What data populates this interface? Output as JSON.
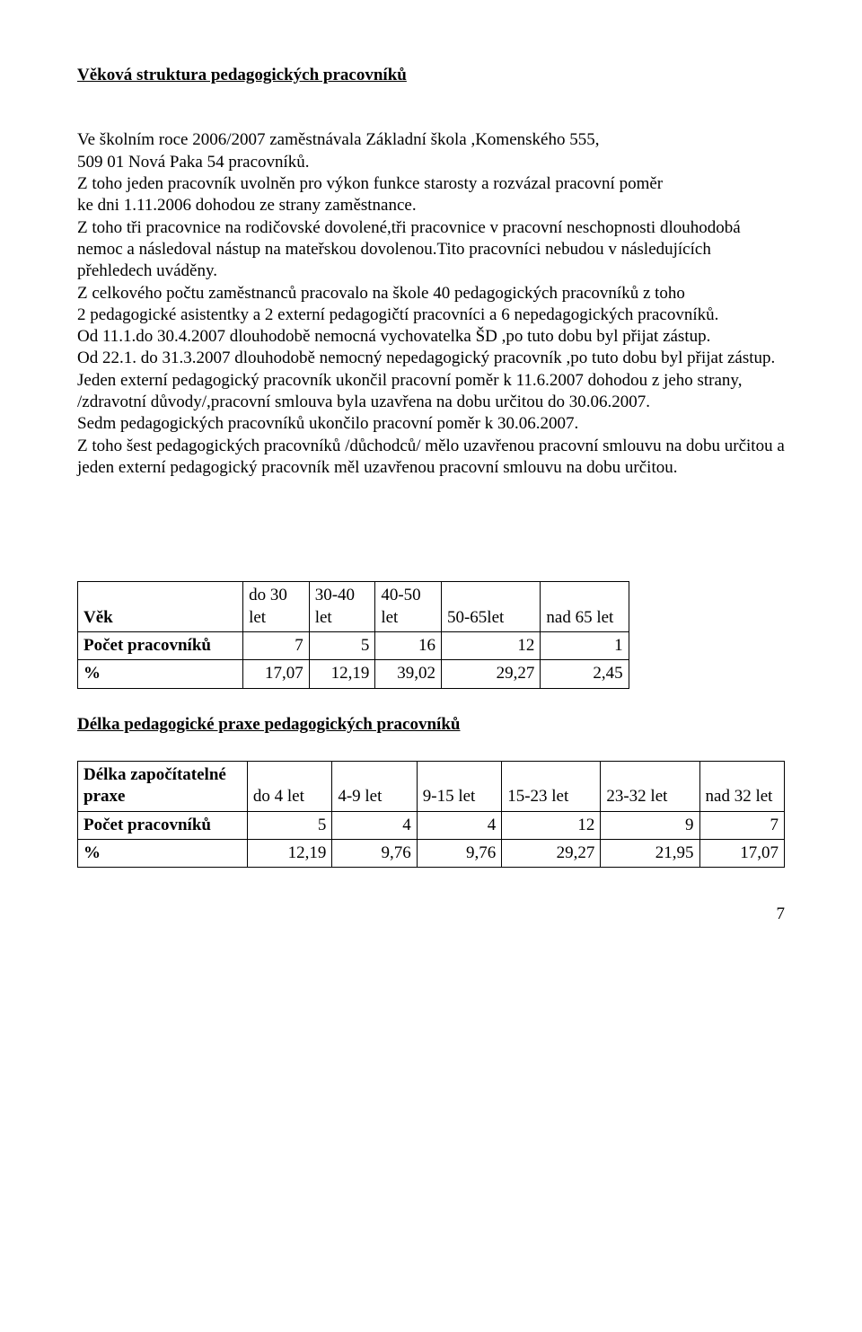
{
  "title": "Věková struktura pedagogických pracovníků",
  "body": {
    "p1": "Ve školním roce 2006/2007 zaměstnávala Základní škola ,Komenského 555,",
    "p2": "509 01 Nová Paka 54 pracovníků.",
    "p3": "Z toho jeden pracovník uvolněn pro výkon funkce starosty a rozvázal pracovní poměr",
    "p4": "ke dni 1.11.2006 dohodou ze strany zaměstnance.",
    "p5": "Z toho tři pracovnice na rodičovské dovolené,tři pracovnice v pracovní neschopnosti dlouhodobá nemoc a následoval nástup na mateřskou dovolenou.Tito pracovníci nebudou v následujících přehledech uváděny.",
    "p6": "Z celkového počtu zaměstnanců pracovalo na škole 40 pedagogických pracovníků z toho",
    "p7": "2 pedagogické asistentky  a 2 externí pedagogičtí pracovníci a 6 nepedagogických pracovníků.",
    "p8": "Od 11.1.do 30.4.2007 dlouhodobě nemocná vychovatelka ŠD ,po tuto dobu byl přijat zástup.",
    "p9": "Od 22.1. do 31.3.2007 dlouhodobě nemocný nepedagogický pracovník ,po tuto dobu byl přijat zástup.",
    "p10": "Jeden externí pedagogický pracovník ukončil pracovní poměr k 11.6.2007 dohodou z jeho strany, /zdravotní důvody/,pracovní smlouva byla uzavřena na dobu určitou do 30.06.2007.",
    "p11": " Sedm pedagogických pracovníků ukončilo pracovní poměr k 30.06.2007.",
    "p12": "Z toho šest pedagogických pracovníků /důchodců/ mělo uzavřenou pracovní smlouvu na dobu určitou  a jeden externí pedagogický pracovník měl uzavřenou pracovní smlouvu na dobu určitou."
  },
  "ageTable": {
    "rowLabel": "Věk",
    "headers": [
      "do 30 let",
      "30-40 let",
      "40-50 let",
      "50-65let",
      "nad 65 let"
    ],
    "rows": [
      {
        "label": "Počet pracovníků",
        "vals": [
          "7",
          "5",
          "16",
          "12",
          "1"
        ]
      },
      {
        "label": "%",
        "vals": [
          "17,07",
          "12,19",
          "39,02",
          "29,27",
          "2,45"
        ]
      }
    ],
    "colWidths": [
      "30%",
      "12%",
      "12%",
      "12%",
      "18%",
      "16%"
    ],
    "border_color": "#000000"
  },
  "praxeHeading": "Délka pedagogické praxe pedagogických pracovníků",
  "praxeTable": {
    "rowLabel": "Délka započítatelné praxe",
    "headers": [
      "do 4 let",
      "4-9 let",
      "9-15 let",
      "15-23 let",
      "23-32 let",
      "nad 32 let"
    ],
    "rows": [
      {
        "label": "Počet pracovníků",
        "vals": [
          "5",
          "4",
          "4",
          "12",
          "9",
          "7"
        ]
      },
      {
        "label": "%",
        "vals": [
          "12,19",
          "9,76",
          "9,76",
          "29,27",
          "21,95",
          "17,07"
        ]
      }
    ],
    "colWidths": [
      "24%",
      "12%",
      "12%",
      "12%",
      "14%",
      "14%",
      "12%"
    ],
    "border_color": "#000000"
  },
  "pageNumber": "7",
  "colors": {
    "text": "#000000",
    "background": "#ffffff"
  },
  "typography": {
    "font_family": "Times New Roman",
    "body_size_pt": 14,
    "title_weight": "bold"
  }
}
